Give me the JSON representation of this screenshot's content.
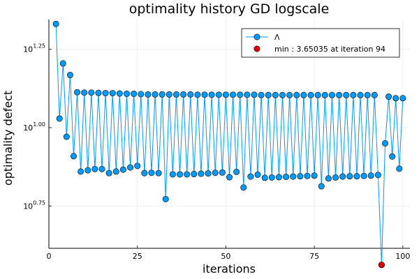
{
  "chart_data": {
    "type": "scatter",
    "title": "optimality history GD logscale",
    "xlabel": "iterations",
    "ylabel": "optimality defect",
    "y_scale": "log10",
    "xlim": [
      0,
      102
    ],
    "ylim_log10": [
      0.615,
      1.345
    ],
    "grid": true,
    "legend_position": "top-right",
    "x_ticks": [
      {
        "value": 0,
        "label": "0"
      },
      {
        "value": 25,
        "label": "25"
      },
      {
        "value": 50,
        "label": "50"
      },
      {
        "value": 75,
        "label": "75"
      },
      {
        "value": 100,
        "label": "100"
      }
    ],
    "y_ticks": [
      {
        "log10": 0.75,
        "base": "10",
        "exp": "0.75"
      },
      {
        "log10": 1.0,
        "base": "10",
        "exp": "1.00"
      },
      {
        "log10": 1.25,
        "base": "10",
        "exp": "1.25"
      }
    ],
    "series": [
      {
        "name": "Λ",
        "color": "#009AFA",
        "x": [
          2,
          3,
          4,
          5,
          6,
          7,
          8,
          9,
          10,
          11,
          12,
          13,
          14,
          15,
          16,
          17,
          18,
          19,
          20,
          21,
          22,
          23,
          24,
          25,
          26,
          27,
          28,
          29,
          30,
          31,
          32,
          33,
          34,
          35,
          36,
          37,
          38,
          39,
          40,
          41,
          42,
          43,
          44,
          45,
          46,
          47,
          48,
          49,
          50,
          51,
          52,
          53,
          54,
          55,
          56,
          57,
          58,
          59,
          60,
          61,
          62,
          63,
          64,
          65,
          66,
          67,
          68,
          69,
          70,
          71,
          72,
          73,
          74,
          75,
          76,
          77,
          78,
          79,
          80,
          81,
          82,
          83,
          84,
          85,
          86,
          87,
          88,
          89,
          90,
          91,
          92,
          93,
          94,
          95,
          96,
          97,
          98,
          99,
          100
        ],
        "log10_y": [
          1.331,
          1.029,
          1.205,
          0.971,
          1.168,
          0.909,
          1.113,
          0.86,
          1.112,
          0.864,
          1.112,
          0.868,
          1.111,
          0.868,
          1.11,
          0.855,
          1.11,
          0.86,
          1.109,
          0.866,
          1.108,
          0.873,
          1.108,
          0.878,
          1.107,
          0.855,
          1.106,
          0.856,
          1.106,
          0.855,
          1.106,
          0.772,
          1.106,
          0.851,
          1.106,
          0.851,
          1.106,
          0.851,
          1.106,
          0.852,
          1.105,
          0.853,
          1.105,
          0.854,
          1.105,
          0.856,
          1.105,
          0.857,
          1.105,
          0.842,
          1.105,
          0.859,
          1.105,
          0.809,
          1.105,
          0.844,
          1.105,
          0.85,
          1.104,
          0.84,
          1.104,
          0.841,
          1.104,
          0.842,
          1.104,
          0.843,
          1.104,
          0.844,
          1.104,
          0.845,
          1.104,
          0.846,
          1.104,
          0.847,
          1.104,
          0.813,
          1.104,
          0.838,
          1.104,
          0.841,
          1.104,
          0.844,
          1.104,
          0.845,
          1.104,
          0.845,
          1.104,
          0.846,
          1.104,
          0.847,
          1.104,
          0.849,
          0.562,
          0.95,
          1.099,
          0.908,
          1.094,
          0.869,
          1.094
        ]
      },
      {
        "name": "min : 3.65035 at iteration 94",
        "color": "#E00000",
        "x": [
          94
        ],
        "y": [
          3.65035
        ]
      }
    ]
  }
}
